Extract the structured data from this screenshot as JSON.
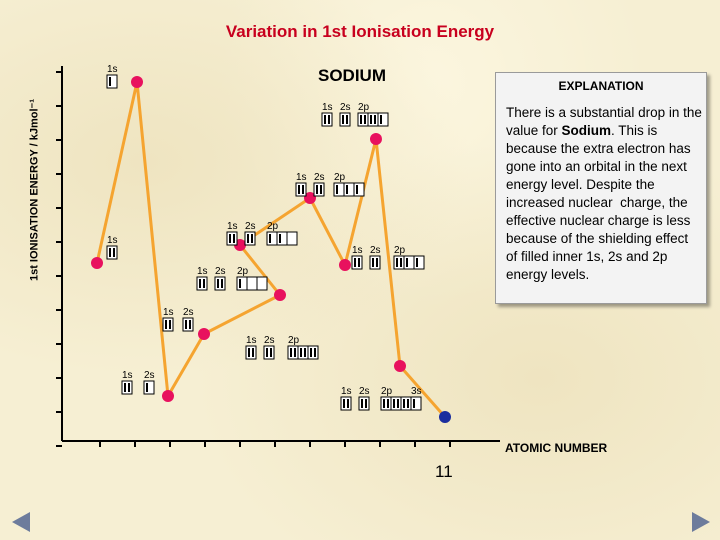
{
  "title": "Variation in 1st Ionisation Energy",
  "sodium_label": "SODIUM",
  "y_axis_label": "1st IONISATION ENERGY / kJmol⁻¹",
  "x_axis_label": "ATOMIC NUMBER",
  "x_tick_label": "11",
  "explanation": {
    "heading": "EXPLANATION",
    "text": "There is a substantial drop in the value for Sodium. This is because the extra electron has gone into an orbital in the next energy level. Despite the increased nuclear charge, the effective nuclear charge is less because of the shielding effect of filled inner 1s, 2s and 2p energy levels."
  },
  "colors": {
    "line": "#f5a430",
    "point": "#e8115e",
    "sodium_point": "#1c2e9e",
    "title": "#c8001e"
  },
  "elements": [
    {
      "orbitals": [
        {
          "label": "1s",
          "boxes": [
            1
          ]
        }
      ]
    },
    {
      "orbitals": [
        {
          "label": "1s",
          "boxes": [
            2
          ]
        }
      ]
    },
    {
      "orbitals": [
        {
          "label": "1s",
          "boxes": [
            2
          ]
        },
        {
          "label": "2s",
          "boxes": [
            1
          ]
        }
      ]
    },
    {
      "orbitals": [
        {
          "label": "1s",
          "boxes": [
            2
          ]
        },
        {
          "label": "2s",
          "boxes": [
            2
          ]
        }
      ]
    },
    {
      "orbitals": [
        {
          "label": "1s",
          "boxes": [
            2
          ]
        },
        {
          "label": "2s",
          "boxes": [
            2
          ]
        },
        {
          "label": "2p",
          "boxes": [
            1,
            0,
            0
          ]
        }
      ]
    },
    {
      "orbitals": [
        {
          "label": "1s",
          "boxes": [
            2
          ]
        },
        {
          "label": "2s",
          "boxes": [
            2
          ]
        },
        {
          "label": "2p",
          "boxes": [
            1,
            1,
            0
          ]
        }
      ]
    },
    {
      "orbitals": [
        {
          "label": "1s",
          "boxes": [
            2
          ]
        },
        {
          "label": "2s",
          "boxes": [
            2
          ]
        },
        {
          "label": "2p",
          "boxes": [
            1,
            1,
            1
          ]
        }
      ]
    },
    {
      "orbitals": [
        {
          "label": "1s",
          "boxes": [
            2
          ]
        },
        {
          "label": "2s",
          "boxes": [
            2
          ]
        },
        {
          "label": "2p",
          "boxes": [
            2,
            1,
            1
          ]
        }
      ]
    },
    {
      "orbitals": [
        {
          "label": "1s",
          "boxes": [
            2
          ]
        },
        {
          "label": "2s",
          "boxes": [
            2
          ]
        },
        {
          "label": "2p",
          "boxes": [
            2,
            2,
            1
          ]
        }
      ]
    },
    {
      "orbitals": [
        {
          "label": "1s",
          "boxes": [
            2
          ]
        },
        {
          "label": "2s",
          "boxes": [
            2
          ]
        },
        {
          "label": "2p",
          "boxes": [
            2,
            2,
            2
          ]
        }
      ]
    },
    {
      "orbitals": [
        {
          "label": "1s",
          "boxes": [
            2
          ]
        },
        {
          "label": "2s",
          "boxes": [
            2
          ]
        },
        {
          "label": "2p",
          "boxes": [
            2,
            2,
            2
          ]
        },
        {
          "label": "3s",
          "boxes": [
            1
          ]
        }
      ]
    }
  ]
}
